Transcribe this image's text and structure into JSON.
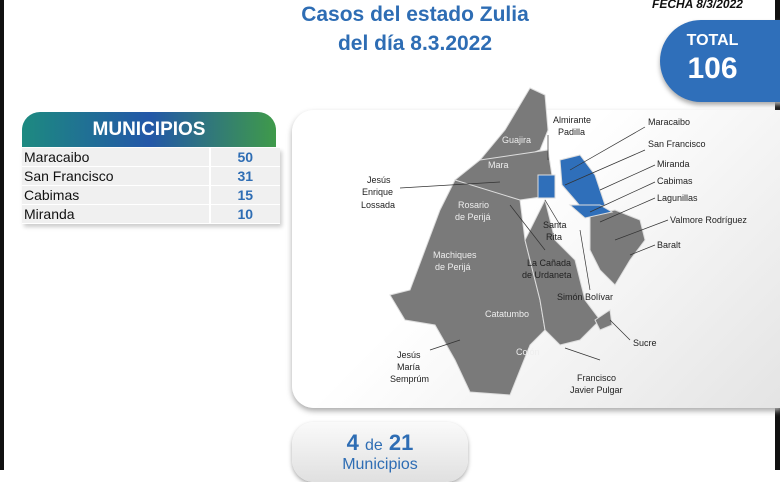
{
  "header": {
    "title_line1": "Casos del estado Zulia",
    "title_line2": "del día 8.3.2022",
    "fecha": "FECHA 8/3/2022"
  },
  "total": {
    "label": "TOTAL",
    "value": "106",
    "color": "#2f6fba"
  },
  "municipios": {
    "title": "MUNICIPIOS",
    "rows": [
      {
        "name": "Maracaibo",
        "count": "50"
      },
      {
        "name": "San Francisco",
        "count": "31"
      },
      {
        "name": "Cabimas",
        "count": "15"
      },
      {
        "name": "Miranda",
        "count": "10"
      }
    ]
  },
  "map": {
    "labels": {
      "guajira": "Guajira",
      "almirante1": "Almirante",
      "almirante2": "Padilla",
      "mara": "Mara",
      "jesus1": "Jesús",
      "jesus2": "Enrique",
      "jesus3": "Lossada",
      "rosario1": "Rosario",
      "rosario2": "de Perijá",
      "machiques1": "Machiques",
      "machiques2": "de Perijá",
      "santa1": "Santa",
      "santa2": "Rita",
      "canada1": "La Cañada",
      "canada2": "de Urdaneta",
      "simon": "Simón Bolívar",
      "catatumbo": "Catatumbo",
      "colon": "Colón",
      "semprum1": "Jesús",
      "semprum2": "María",
      "semprum3": "Semprúm",
      "francisco1": "Francisco",
      "francisco2": "Javier Pulgar",
      "sucre": "Sucre",
      "maracaibo": "Maracaibo",
      "sanfrancisco": "San Francisco",
      "miranda": "Miranda",
      "cabimas": "Cabimas",
      "lagunillas": "Lagunillas",
      "valmore": "Valmore Rodríguez",
      "baralt": "Baralt"
    },
    "highlight_color": "#2f6fba",
    "base_color": "#7a7a7a"
  },
  "summary": {
    "count": "4",
    "de": "de",
    "of": "21",
    "label": "Municipios"
  }
}
